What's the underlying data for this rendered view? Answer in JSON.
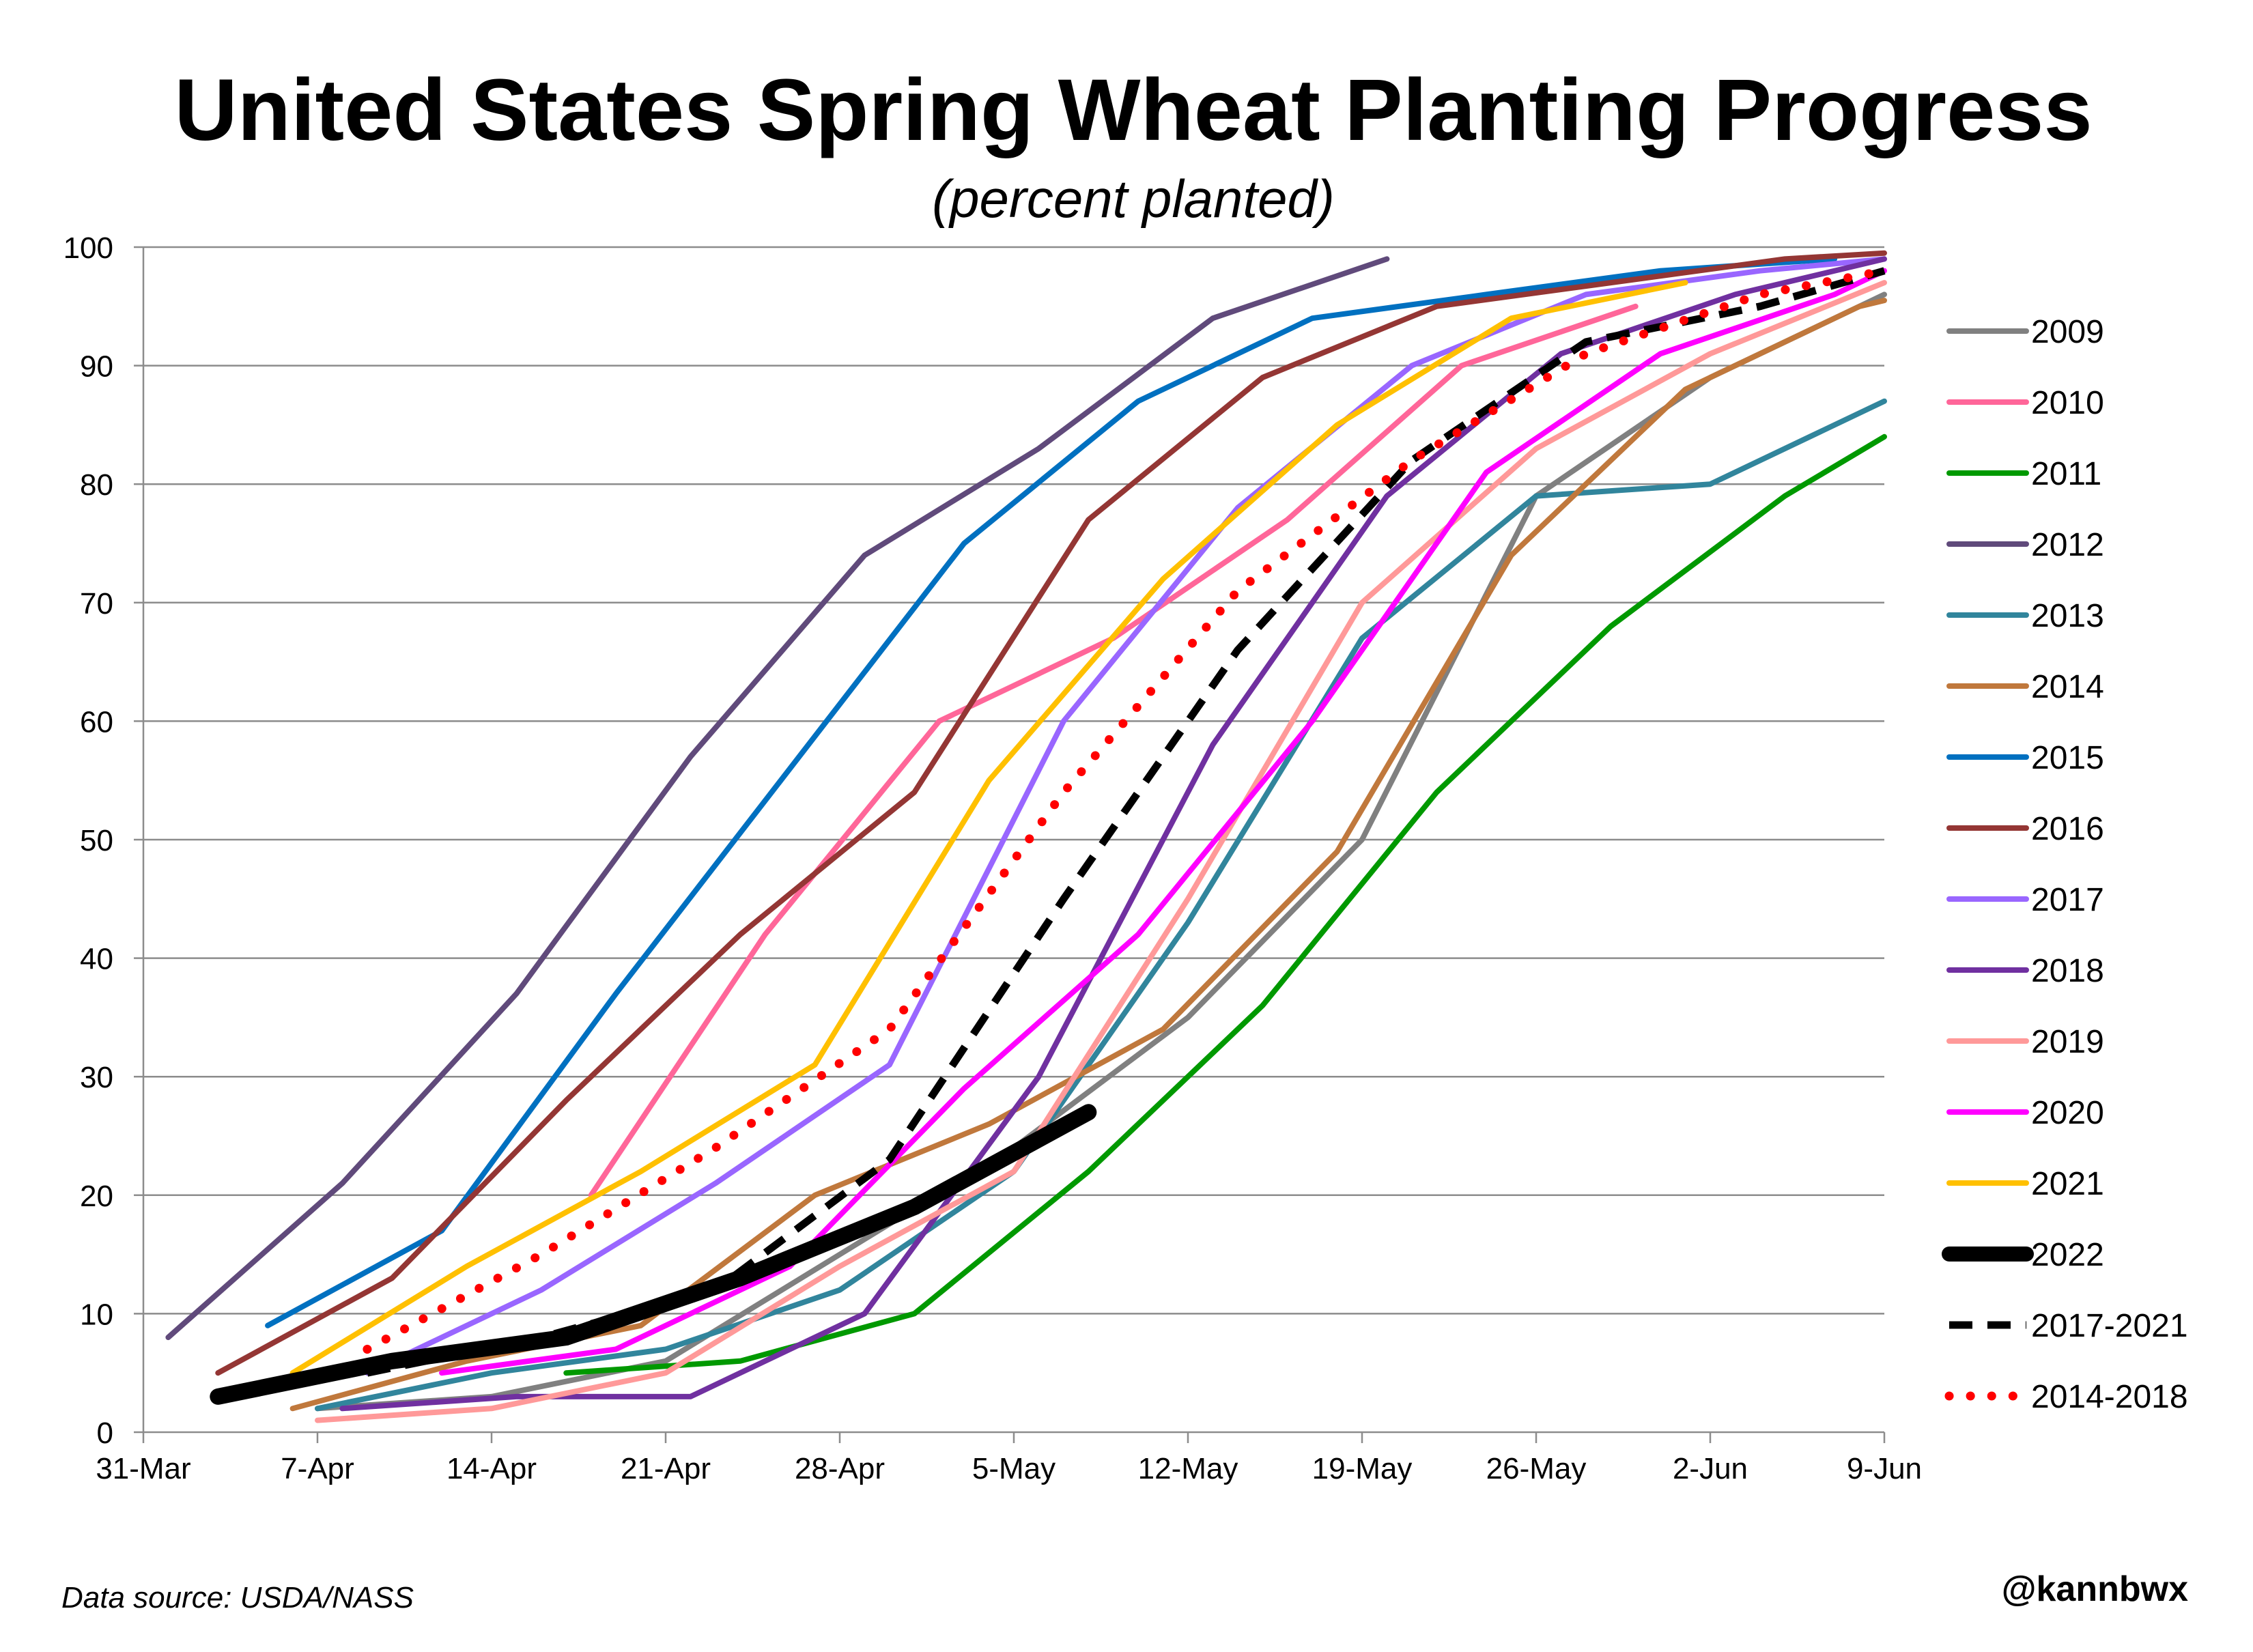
{
  "chart_data": {
    "type": "line",
    "title": "United States Spring Wheat Planting Progress",
    "subtitle": "(percent planted)",
    "xlabel": "",
    "ylabel": "",
    "xlim": [
      "2022-03-31",
      "2022-06-09"
    ],
    "ylim": [
      0,
      100
    ],
    "x_ticks": [
      "31-Mar",
      "7-Apr",
      "14-Apr",
      "21-Apr",
      "28-Apr",
      "5-May",
      "12-May",
      "19-May",
      "26-May",
      "2-Jun",
      "9-Jun"
    ],
    "y_ticks": [
      0,
      10,
      20,
      30,
      40,
      50,
      60,
      70,
      80,
      90,
      100
    ],
    "grid": "horizontal",
    "legend": "right",
    "series": [
      {
        "name": "2009",
        "color": "#808080",
        "style": "solid",
        "points": [
          [
            "2022-04-07",
            2
          ],
          [
            "2022-04-14",
            3
          ],
          [
            "2022-04-21",
            6
          ],
          [
            "2022-04-28",
            15
          ],
          [
            "2022-05-05",
            24
          ],
          [
            "2022-05-12",
            35
          ],
          [
            "2022-05-19",
            50
          ],
          [
            "2022-05-26",
            79
          ],
          [
            "2022-06-02",
            89
          ],
          [
            "2022-06-09",
            96
          ]
        ]
      },
      {
        "name": "2010",
        "color": "#FF6699",
        "style": "solid",
        "points": [
          [
            "2022-04-18",
            20
          ],
          [
            "2022-04-25",
            42
          ],
          [
            "2022-05-02",
            60
          ],
          [
            "2022-05-09",
            67
          ],
          [
            "2022-05-16",
            77
          ],
          [
            "2022-05-23",
            90
          ],
          [
            "2022-05-30",
            95
          ]
        ]
      },
      {
        "name": "2011",
        "color": "#009900",
        "style": "solid",
        "points": [
          [
            "2022-04-17",
            5
          ],
          [
            "2022-04-24",
            6
          ],
          [
            "2022-05-01",
            10
          ],
          [
            "2022-05-08",
            22
          ],
          [
            "2022-05-15",
            36
          ],
          [
            "2022-05-22",
            54
          ],
          [
            "2022-05-29",
            68
          ],
          [
            "2022-06-05",
            79
          ],
          [
            "2022-06-09",
            84
          ]
        ]
      },
      {
        "name": "2012",
        "color": "#604A7B",
        "style": "solid",
        "points": [
          [
            "2022-04-01",
            8
          ],
          [
            "2022-04-08",
            21
          ],
          [
            "2022-04-15",
            37
          ],
          [
            "2022-04-22",
            57
          ],
          [
            "2022-04-29",
            74
          ],
          [
            "2022-05-06",
            83
          ],
          [
            "2022-05-13",
            94
          ],
          [
            "2022-05-20",
            99
          ]
        ]
      },
      {
        "name": "2013",
        "color": "#31859C",
        "style": "solid",
        "points": [
          [
            "2022-04-07",
            2
          ],
          [
            "2022-04-14",
            5
          ],
          [
            "2022-04-21",
            7
          ],
          [
            "2022-04-28",
            12
          ],
          [
            "2022-05-05",
            22
          ],
          [
            "2022-05-12",
            43
          ],
          [
            "2022-05-19",
            67
          ],
          [
            "2022-05-26",
            79
          ],
          [
            "2022-06-02",
            80
          ],
          [
            "2022-06-09",
            87
          ]
        ]
      },
      {
        "name": "2014",
        "color": "#C0783C",
        "style": "solid",
        "points": [
          [
            "2022-04-06",
            2
          ],
          [
            "2022-04-13",
            6
          ],
          [
            "2022-04-20",
            9
          ],
          [
            "2022-04-27",
            20
          ],
          [
            "2022-05-04",
            26
          ],
          [
            "2022-05-11",
            34
          ],
          [
            "2022-05-18",
            49
          ],
          [
            "2022-05-25",
            74
          ],
          [
            "2022-06-01",
            88
          ],
          [
            "2022-06-08",
            95
          ],
          [
            "2022-06-09",
            95.5
          ]
        ]
      },
      {
        "name": "2015",
        "color": "#0070C0",
        "style": "solid",
        "points": [
          [
            "2022-04-05",
            9
          ],
          [
            "2022-04-12",
            17
          ],
          [
            "2022-04-19",
            37
          ],
          [
            "2022-04-26",
            56
          ],
          [
            "2022-05-03",
            75
          ],
          [
            "2022-05-10",
            87
          ],
          [
            "2022-05-17",
            94
          ],
          [
            "2022-05-24",
            96
          ],
          [
            "2022-05-31",
            98
          ],
          [
            "2022-06-07",
            99
          ]
        ]
      },
      {
        "name": "2016",
        "color": "#943634",
        "style": "solid",
        "points": [
          [
            "2022-04-03",
            5
          ],
          [
            "2022-04-10",
            13
          ],
          [
            "2022-04-17",
            28
          ],
          [
            "2022-04-24",
            42
          ],
          [
            "2022-05-01",
            54
          ],
          [
            "2022-05-08",
            77
          ],
          [
            "2022-05-15",
            89
          ],
          [
            "2022-05-22",
            95
          ],
          [
            "2022-05-29",
            97
          ],
          [
            "2022-06-05",
            99
          ],
          [
            "2022-06-09",
            99.5
          ]
        ]
      },
      {
        "name": "2017",
        "color": "#9966FF",
        "style": "solid",
        "points": [
          [
            "2022-04-09",
            5
          ],
          [
            "2022-04-16",
            12
          ],
          [
            "2022-04-23",
            21
          ],
          [
            "2022-04-30",
            31
          ],
          [
            "2022-05-07",
            60
          ],
          [
            "2022-05-14",
            78
          ],
          [
            "2022-05-21",
            90
          ],
          [
            "2022-05-28",
            96
          ],
          [
            "2022-06-04",
            98
          ],
          [
            "2022-06-09",
            99
          ]
        ]
      },
      {
        "name": "2018",
        "color": "#7030A0",
        "style": "solid",
        "points": [
          [
            "2022-04-08",
            2
          ],
          [
            "2022-04-15",
            3
          ],
          [
            "2022-04-22",
            3
          ],
          [
            "2022-04-29",
            10
          ],
          [
            "2022-05-06",
            30
          ],
          [
            "2022-05-13",
            58
          ],
          [
            "2022-05-20",
            79
          ],
          [
            "2022-05-27",
            91
          ],
          [
            "2022-06-03",
            96
          ],
          [
            "2022-06-09",
            99
          ]
        ]
      },
      {
        "name": "2019",
        "color": "#FF9999",
        "style": "solid",
        "points": [
          [
            "2022-04-07",
            1
          ],
          [
            "2022-04-14",
            2
          ],
          [
            "2022-04-21",
            5
          ],
          [
            "2022-04-28",
            14
          ],
          [
            "2022-05-05",
            22
          ],
          [
            "2022-05-12",
            45
          ],
          [
            "2022-05-19",
            70
          ],
          [
            "2022-05-26",
            83
          ],
          [
            "2022-06-02",
            91
          ],
          [
            "2022-06-09",
            97
          ]
        ]
      },
      {
        "name": "2020",
        "color": "#FF00FF",
        "style": "solid",
        "points": [
          [
            "2022-04-12",
            5
          ],
          [
            "2022-04-19",
            7
          ],
          [
            "2022-04-26",
            14
          ],
          [
            "2022-05-03",
            29
          ],
          [
            "2022-05-10",
            42
          ],
          [
            "2022-05-17",
            60
          ],
          [
            "2022-05-24",
            81
          ],
          [
            "2022-05-31",
            91
          ],
          [
            "2022-06-07",
            96
          ],
          [
            "2022-06-09",
            98
          ]
        ]
      },
      {
        "name": "2021",
        "color": "#FFC000",
        "style": "solid",
        "points": [
          [
            "2022-04-06",
            5
          ],
          [
            "2022-04-13",
            14
          ],
          [
            "2022-04-20",
            22
          ],
          [
            "2022-04-27",
            31
          ],
          [
            "2022-05-04",
            55
          ],
          [
            "2022-05-11",
            72
          ],
          [
            "2022-05-18",
            85
          ],
          [
            "2022-05-25",
            94
          ],
          [
            "2022-06-01",
            97
          ]
        ]
      },
      {
        "name": "2022",
        "color": "#000000",
        "style": "thick",
        "points": [
          [
            "2022-04-03",
            3
          ],
          [
            "2022-04-10",
            6
          ],
          [
            "2022-04-17",
            8
          ],
          [
            "2022-04-24",
            13
          ],
          [
            "2022-05-01",
            19
          ],
          [
            "2022-05-08",
            27
          ]
        ]
      },
      {
        "name": "2017-2021",
        "color": "#000000",
        "style": "dashed",
        "points": [
          [
            "2022-04-09",
            5
          ],
          [
            "2022-04-16",
            8
          ],
          [
            "2022-04-23",
            12
          ],
          [
            "2022-04-30",
            23
          ],
          [
            "2022-05-07",
            45
          ],
          [
            "2022-05-14",
            66
          ],
          [
            "2022-05-21",
            82
          ],
          [
            "2022-05-28",
            92
          ],
          [
            "2022-06-04",
            95
          ],
          [
            "2022-06-09",
            98
          ]
        ]
      },
      {
        "name": "2014-2018",
        "color": "#FF0000",
        "style": "dotted",
        "points": [
          [
            "2022-04-09",
            7
          ],
          [
            "2022-04-16",
            15
          ],
          [
            "2022-04-23",
            24
          ],
          [
            "2022-04-30",
            34
          ],
          [
            "2022-05-07",
            54
          ],
          [
            "2022-05-14",
            71
          ],
          [
            "2022-05-21",
            82
          ],
          [
            "2022-05-28",
            91
          ],
          [
            "2022-06-04",
            96
          ],
          [
            "2022-06-09",
            98
          ]
        ]
      }
    ]
  },
  "footer": {
    "source": "Data source: USDA/NASS",
    "handle": "@kannbwx"
  }
}
